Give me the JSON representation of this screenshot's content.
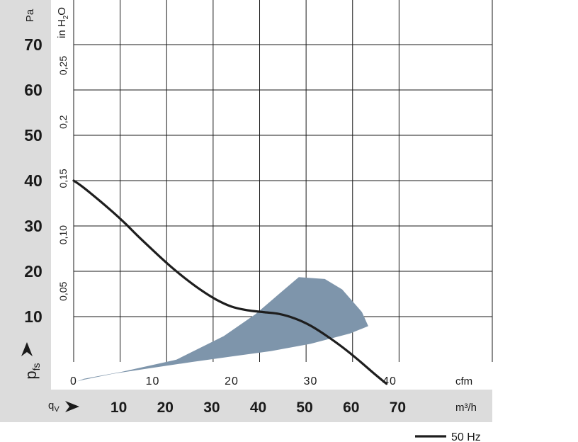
{
  "chart_data": {
    "type": "line",
    "x_unit_primary": "cfm",
    "x_unit_secondary": "m³/h",
    "y_unit_primary": "Pa",
    "y_unit_secondary": "in H2O",
    "xlim_cfm": [
      0,
      50
    ],
    "ylim_pa": [
      0,
      80
    ],
    "grid": true,
    "cfm_ticks": [
      {
        "value": 0,
        "label": "0"
      },
      {
        "value": 10,
        "label": "10"
      },
      {
        "value": 20,
        "label": "20"
      },
      {
        "value": 30,
        "label": "30"
      },
      {
        "value": 40,
        "label": "40"
      }
    ],
    "m3h_ticks": [
      {
        "value": 10,
        "label": "10"
      },
      {
        "value": 20,
        "label": "20"
      },
      {
        "value": 30,
        "label": "30"
      },
      {
        "value": 40,
        "label": "40"
      },
      {
        "value": 50,
        "label": "50"
      },
      {
        "value": 60,
        "label": "60"
      },
      {
        "value": 70,
        "label": "70"
      }
    ],
    "pa_ticks": [
      {
        "value": 10,
        "label": "10"
      },
      {
        "value": 20,
        "label": "20"
      },
      {
        "value": 30,
        "label": "30"
      },
      {
        "value": 40,
        "label": "40"
      },
      {
        "value": 50,
        "label": "50"
      },
      {
        "value": 60,
        "label": "60"
      },
      {
        "value": 70,
        "label": "70"
      }
    ],
    "inh2o_ticks": [
      {
        "value": 0.05,
        "label": "0,05"
      },
      {
        "value": 0.1,
        "label": "0,10"
      },
      {
        "value": 0.15,
        "label": "0,15"
      },
      {
        "value": 0.2,
        "label": "0,2"
      },
      {
        "value": 0.25,
        "label": "0,25"
      }
    ],
    "series": [
      {
        "name": "50 Hz",
        "x": [
          0,
          1,
          3,
          5,
          6.5,
          8,
          10,
          12,
          14,
          16,
          18,
          20,
          22,
          24,
          26,
          28,
          30,
          32,
          34,
          36,
          38,
          39.6
        ],
        "y": [
          40,
          38.8,
          36,
          33,
          30.6,
          28,
          24.7,
          21.5,
          18.6,
          16,
          13.8,
          12.2,
          11.4,
          11,
          10.6,
          9.6,
          8,
          5.8,
          3.3,
          0.5,
          -2.5,
          -4.8
        ]
      }
    ],
    "shaded_region": {
      "x": [
        0.4,
        1.3,
        6,
        13,
        19,
        23,
        26,
        28.5,
        31.8,
        34,
        36.5,
        37.3,
        35,
        30,
        25,
        20,
        15,
        10,
        5,
        1.3,
        0.4
      ],
      "y": [
        -4.3,
        -3.7,
        -2.2,
        0.5,
        5.7,
        10.5,
        15,
        18.7,
        18.3,
        16,
        11,
        7.9,
        6.3,
        4,
        2.4,
        1.2,
        0,
        -1.3,
        -2.6,
        -3.9,
        -4.3
      ]
    },
    "axis_labels": {
      "pa": "Pa",
      "inh2o": "in H",
      "inh2o_sub": "2",
      "inh2o_tail": "O",
      "pressure_symbol": "p",
      "pressure_sub": "fs",
      "flow_symbol": "q",
      "flow_sub": "V",
      "cfm": "cfm",
      "m3h": "m³/h"
    },
    "colors": {
      "curve": "#1e1e1e",
      "shade": "#7e95ab",
      "panel": "#dcdcdc",
      "grid": "#1a1a1a"
    }
  }
}
